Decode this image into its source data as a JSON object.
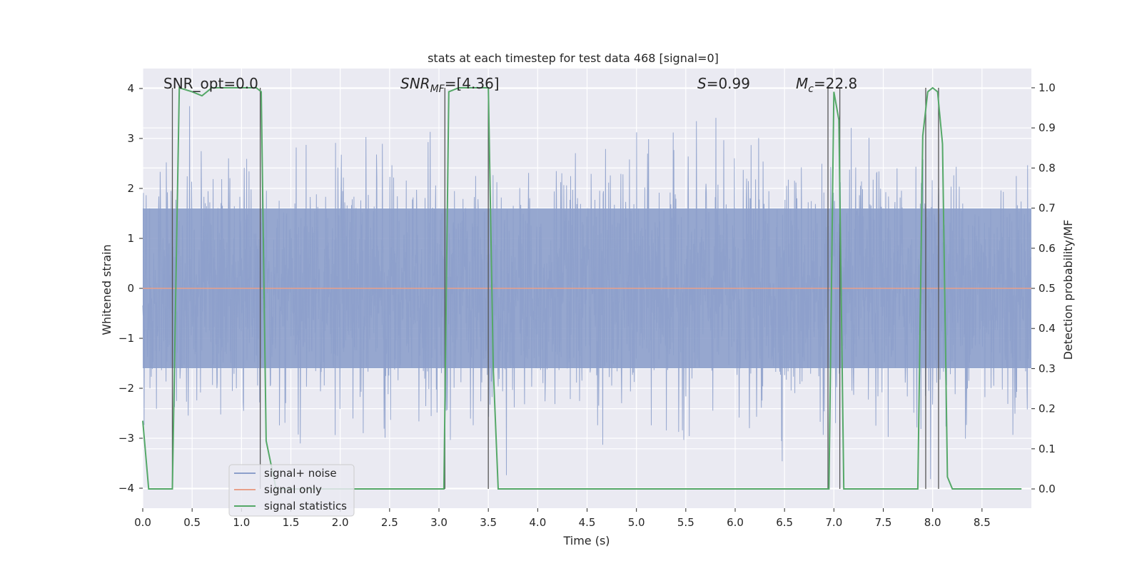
{
  "chart_data": {
    "type": "line",
    "title": "stats at each timestep for test data 468 [signal=0]",
    "xlabel": "Time (s)",
    "ylabel": "Whitened strain",
    "ylabel_right": "Detection probability/MF",
    "xlim": [
      0.0,
      9.0
    ],
    "ylim": [
      -4.4,
      4.4
    ],
    "ylim_right": [
      -0.048,
      1.048
    ],
    "x_ticks": [
      0.0,
      0.5,
      1.0,
      1.5,
      2.0,
      2.5,
      3.0,
      3.5,
      4.0,
      4.5,
      5.0,
      5.5,
      6.0,
      6.5,
      7.0,
      7.5,
      8.0,
      8.5
    ],
    "x_tick_labels": [
      "0.0",
      "0.5",
      "1.0",
      "1.5",
      "2.0",
      "2.5",
      "3.0",
      "3.5",
      "4.0",
      "4.5",
      "5.0",
      "5.5",
      "6.0",
      "6.5",
      "7.0",
      "7.5",
      "8.0",
      "8.5"
    ],
    "y_ticks": [
      -4,
      -3,
      -2,
      -1,
      0,
      1,
      2,
      3,
      4
    ],
    "y_tick_labels": [
      "−4",
      "−3",
      "−2",
      "−1",
      "0",
      "1",
      "2",
      "3",
      "4"
    ],
    "y_ticks_right": [
      0.0,
      0.1,
      0.2,
      0.3,
      0.4,
      0.5,
      0.6,
      0.7,
      0.8,
      0.9,
      1.0
    ],
    "y_tick_labels_right": [
      "0.0",
      "0.1",
      "0.2",
      "0.3",
      "0.4",
      "0.5",
      "0.6",
      "0.7",
      "0.8",
      "0.9",
      "1.0"
    ],
    "grid": true,
    "legend_position": "lower-left",
    "annotations": {
      "snr_opt": "SNR_opt=0.0",
      "snr_mf_main": "SNR",
      "snr_mf_sub": "MF",
      "snr_mf_value": "=[4.36]",
      "s_main": "S",
      "s_value": "=0.99",
      "mc_main": "M",
      "mc_sub": "c",
      "mc_value": "=22.8"
    },
    "series": [
      {
        "name": "signal+ noise",
        "axis": "left",
        "color": "#8da0cb",
        "description_only_noise": true,
        "core_amplitude": 1.6,
        "peak_amplitude_max": 4.0
      },
      {
        "name": "signal only",
        "axis": "left",
        "color": "#e8a08a",
        "x": [
          0.0,
          9.0
        ],
        "y": [
          0.0,
          0.0
        ]
      },
      {
        "name": "signal statistics",
        "axis": "right",
        "color": "#55a868",
        "x": [
          0.0,
          0.06,
          0.12,
          0.25,
          0.3,
          0.37,
          0.5,
          0.6,
          0.7,
          0.9,
          1.0,
          1.1,
          1.15,
          1.2,
          1.25,
          1.35,
          1.45,
          3.0,
          3.05,
          3.1,
          3.2,
          3.4,
          3.5,
          3.55,
          3.6,
          3.7,
          6.9,
          6.95,
          7.0,
          7.05,
          7.1,
          7.15,
          7.8,
          7.85,
          7.9,
          7.95,
          8.0,
          8.05,
          8.1,
          8.15,
          8.2,
          8.3,
          8.9
        ],
        "y": [
          0.17,
          0.0,
          0.0,
          0.0,
          0.0,
          1.0,
          0.99,
          0.98,
          1.0,
          1.0,
          1.0,
          1.0,
          1.0,
          0.99,
          0.12,
          0.0,
          0.0,
          0.0,
          0.0,
          0.99,
          1.0,
          1.0,
          1.0,
          0.3,
          0.0,
          0.0,
          0.0,
          0.0,
          0.99,
          0.92,
          0.0,
          0.0,
          0.0,
          0.0,
          0.88,
          0.99,
          1.0,
          0.99,
          0.86,
          0.03,
          0.0,
          0.0,
          0.0
        ]
      }
    ],
    "vlines": [
      0.3,
      1.19,
      3.06,
      3.5,
      6.94,
      7.06,
      7.93,
      8.06
    ]
  }
}
